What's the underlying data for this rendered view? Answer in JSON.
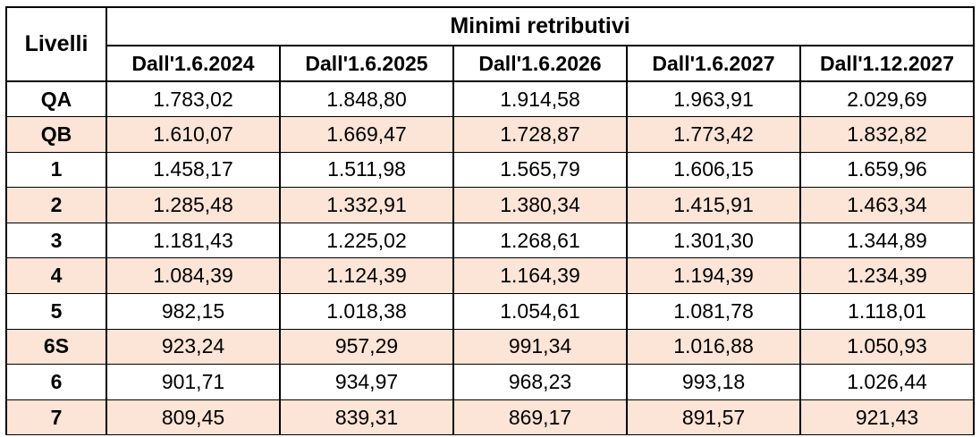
{
  "table": {
    "level_header": "Livelli",
    "group_header": "Minimi retributivi",
    "columns": [
      "Dall'1.6.2024",
      "Dall'1.6.2025",
      "Dall'1.6.2026",
      "Dall'1.6.2027",
      "Dall'1.12.2027"
    ],
    "rows": [
      {
        "level": "QA",
        "values": [
          "1.783,02",
          "1.848,80",
          "1.914,58",
          "1.963,91",
          "2.029,69"
        ]
      },
      {
        "level": "QB",
        "values": [
          "1.610,07",
          "1.669,47",
          "1.728,87",
          "1.773,42",
          "1.832,82"
        ]
      },
      {
        "level": "1",
        "values": [
          "1.458,17",
          "1.511,98",
          "1.565,79",
          "1.606,15",
          "1.659,96"
        ]
      },
      {
        "level": "2",
        "values": [
          "1.285,48",
          "1.332,91",
          "1.380,34",
          "1.415,91",
          "1.463,34"
        ]
      },
      {
        "level": "3",
        "values": [
          "1.181,43",
          "1.225,02",
          "1.268,61",
          "1.301,30",
          "1.344,89"
        ]
      },
      {
        "level": "4",
        "values": [
          "1.084,39",
          "1.124,39",
          "1.164,39",
          "1.194,39",
          "1.234,39"
        ]
      },
      {
        "level": "5",
        "values": [
          "982,15",
          "1.018,38",
          "1.054,61",
          "1.081,78",
          "1.118,01"
        ]
      },
      {
        "level": "6S",
        "values": [
          "923,24",
          "957,29",
          "991,34",
          "1.016,88",
          "1.050,93"
        ]
      },
      {
        "level": "6",
        "values": [
          "901,71",
          "934,97",
          "968,23",
          "993,18",
          "1.026,44"
        ]
      },
      {
        "level": "7",
        "values": [
          "809,45",
          "839,31",
          "869,17",
          "891,57",
          "921,43"
        ]
      }
    ],
    "colors": {
      "alt_row_background": "#fce4d6",
      "row_background": "#ffffff",
      "border": "#000000"
    }
  }
}
